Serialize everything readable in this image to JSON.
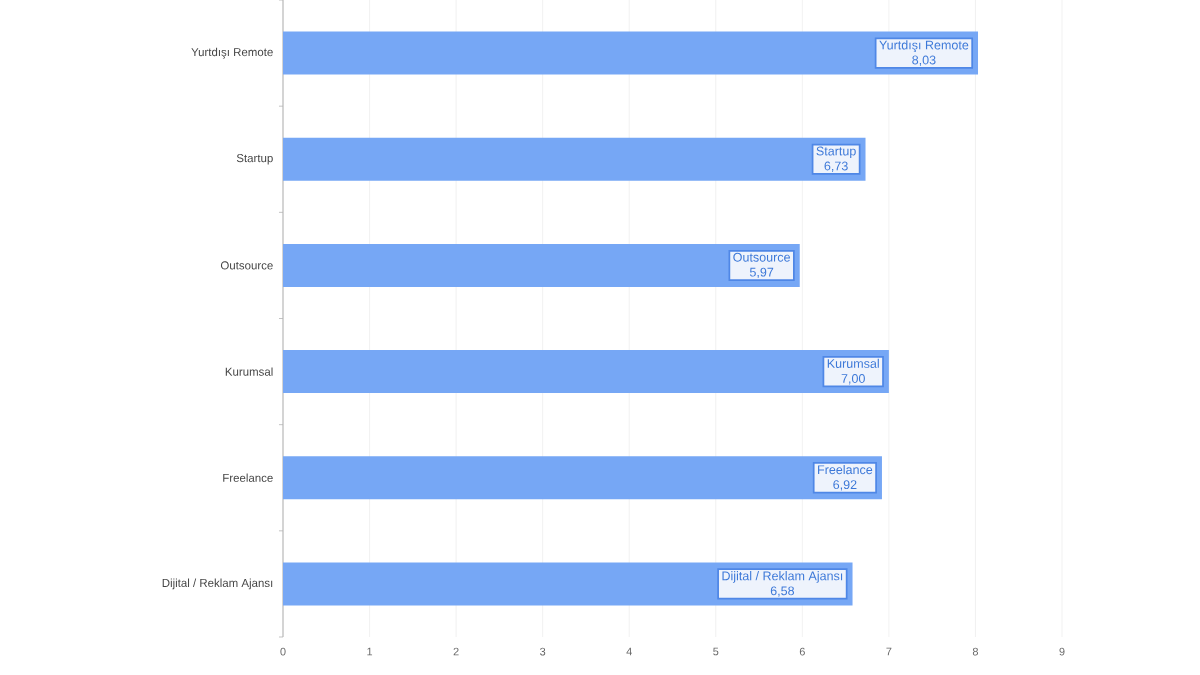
{
  "chart_data": {
    "type": "bar",
    "orientation": "horizontal",
    "categories": [
      "Yurtdışı Remote",
      "Startup",
      "Outsource",
      "Kurumsal",
      "Freelance",
      "Dijital / Reklam Ajansı"
    ],
    "values": [
      8.03,
      6.73,
      5.97,
      7.0,
      6.92,
      6.58
    ],
    "value_labels": [
      "8,03",
      "6,73",
      "5,97",
      "7,00",
      "6,92",
      "6,58"
    ],
    "color": "#76a7f5",
    "xlim": [
      0,
      9
    ],
    "xticks": [
      0,
      1,
      2,
      3,
      4,
      5,
      6,
      7,
      8,
      9
    ],
    "grid": "x"
  }
}
